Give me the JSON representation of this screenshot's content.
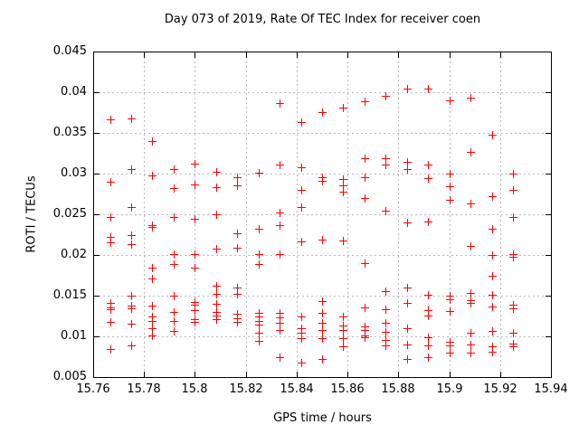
{
  "chart_data": {
    "type": "scatter",
    "title": "Day 073 of 2019, Rate Of TEC Index for receiver coen",
    "xlabel": "GPS time / hours",
    "ylabel": "ROTI / TECUs",
    "xlim": [
      15.76,
      15.94
    ],
    "ylim": [
      0.005,
      0.045
    ],
    "xticks": [
      15.76,
      15.78,
      15.8,
      15.82,
      15.84,
      15.86,
      15.88,
      15.9,
      15.92,
      15.94
    ],
    "xtick_labels": [
      "15.76",
      "15.78",
      "15.8",
      "15.82",
      "15.84",
      "15.86",
      "15.88",
      "15.9",
      "15.92",
      "15.94"
    ],
    "yticks": [
      0.005,
      0.01,
      0.015,
      0.02,
      0.025,
      0.03,
      0.035,
      0.04,
      0.045
    ],
    "ytick_labels": [
      "0.005",
      "0.01",
      "0.015",
      "0.02",
      "0.025",
      "0.03",
      "0.035",
      "0.04",
      "0.045"
    ],
    "grid": true,
    "legend": "none",
    "marker": "plus",
    "marker_color": "#ff0000",
    "grid_color": "#b9b9b9",
    "axis_color": "#000000",
    "background_color": "#ffffff",
    "points": [
      [
        15.7667,
        0.0367
      ],
      [
        15.7667,
        0.029
      ],
      [
        15.7667,
        0.0247
      ],
      [
        15.7667,
        0.0222
      ],
      [
        15.7667,
        0.0216
      ],
      [
        15.7667,
        0.0141
      ],
      [
        15.7667,
        0.0136
      ],
      [
        15.7667,
        0.0133
      ],
      [
        15.7667,
        0.0118
      ],
      [
        15.7667,
        0.0084
      ],
      [
        15.775,
        0.0368
      ],
      [
        15.775,
        0.0306
      ],
      [
        15.775,
        0.0259
      ],
      [
        15.775,
        0.0225
      ],
      [
        15.775,
        0.0213
      ],
      [
        15.775,
        0.015
      ],
      [
        15.775,
        0.0138
      ],
      [
        15.775,
        0.0134
      ],
      [
        15.775,
        0.0116
      ],
      [
        15.775,
        0.0089
      ],
      [
        15.7833,
        0.034
      ],
      [
        15.7833,
        0.0298
      ],
      [
        15.7833,
        0.0237
      ],
      [
        15.7833,
        0.0234
      ],
      [
        15.7833,
        0.0185
      ],
      [
        15.7833,
        0.0171
      ],
      [
        15.7833,
        0.0138
      ],
      [
        15.7833,
        0.0124
      ],
      [
        15.7833,
        0.0119
      ],
      [
        15.7833,
        0.011
      ],
      [
        15.7833,
        0.0101
      ],
      [
        15.7917,
        0.0306
      ],
      [
        15.7917,
        0.0282
      ],
      [
        15.7917,
        0.0247
      ],
      [
        15.7917,
        0.0201
      ],
      [
        15.7917,
        0.0189
      ],
      [
        15.7917,
        0.015
      ],
      [
        15.7917,
        0.013
      ],
      [
        15.7917,
        0.0119
      ],
      [
        15.7917,
        0.0107
      ],
      [
        15.8,
        0.0312
      ],
      [
        15.8,
        0.0287
      ],
      [
        15.8,
        0.0244
      ],
      [
        15.8,
        0.0201
      ],
      [
        15.8,
        0.0184
      ],
      [
        15.8,
        0.0142
      ],
      [
        15.8,
        0.0139
      ],
      [
        15.8,
        0.0132
      ],
      [
        15.8,
        0.0121
      ],
      [
        15.8,
        0.0118
      ],
      [
        15.8083,
        0.0302
      ],
      [
        15.8083,
        0.0283
      ],
      [
        15.8083,
        0.025
      ],
      [
        15.8083,
        0.0208
      ],
      [
        15.8083,
        0.0162
      ],
      [
        15.8083,
        0.0152
      ],
      [
        15.8083,
        0.014
      ],
      [
        15.8083,
        0.013
      ],
      [
        15.8083,
        0.0126
      ],
      [
        15.8083,
        0.0121
      ],
      [
        15.8167,
        0.0296
      ],
      [
        15.8167,
        0.0286
      ],
      [
        15.8167,
        0.0227
      ],
      [
        15.8167,
        0.0209
      ],
      [
        15.8167,
        0.016
      ],
      [
        15.8167,
        0.0152
      ],
      [
        15.8167,
        0.0128
      ],
      [
        15.8167,
        0.0122
      ],
      [
        15.8167,
        0.0118
      ],
      [
        15.825,
        0.0301
      ],
      [
        15.825,
        0.0232
      ],
      [
        15.825,
        0.0201
      ],
      [
        15.825,
        0.0189
      ],
      [
        15.825,
        0.0129
      ],
      [
        15.825,
        0.0124
      ],
      [
        15.825,
        0.0119
      ],
      [
        15.825,
        0.0114
      ],
      [
        15.825,
        0.0104
      ],
      [
        15.825,
        0.0095
      ],
      [
        15.8333,
        0.0387
      ],
      [
        15.8333,
        0.0311
      ],
      [
        15.8333,
        0.0252
      ],
      [
        15.8333,
        0.0237
      ],
      [
        15.8333,
        0.0201
      ],
      [
        15.8333,
        0.0129
      ],
      [
        15.8333,
        0.0123
      ],
      [
        15.8333,
        0.0117
      ],
      [
        15.8333,
        0.0108
      ],
      [
        15.8333,
        0.0075
      ],
      [
        15.8417,
        0.0363
      ],
      [
        15.8417,
        0.0308
      ],
      [
        15.8417,
        0.028
      ],
      [
        15.8417,
        0.0259
      ],
      [
        15.8417,
        0.0217
      ],
      [
        15.8417,
        0.0125
      ],
      [
        15.8417,
        0.011
      ],
      [
        15.8417,
        0.0104
      ],
      [
        15.8417,
        0.0098
      ],
      [
        15.8417,
        0.0068
      ],
      [
        15.85,
        0.0376
      ],
      [
        15.85,
        0.0296
      ],
      [
        15.85,
        0.0291
      ],
      [
        15.85,
        0.0219
      ],
      [
        15.85,
        0.0143
      ],
      [
        15.85,
        0.0129
      ],
      [
        15.85,
        0.0117
      ],
      [
        15.85,
        0.0108
      ],
      [
        15.85,
        0.0098
      ],
      [
        15.85,
        0.0072
      ],
      [
        15.8583,
        0.0381
      ],
      [
        15.8583,
        0.0293
      ],
      [
        15.8583,
        0.0286
      ],
      [
        15.8583,
        0.0278
      ],
      [
        15.8583,
        0.0218
      ],
      [
        15.8583,
        0.0125
      ],
      [
        15.8583,
        0.0113
      ],
      [
        15.8583,
        0.0108
      ],
      [
        15.8583,
        0.0098
      ],
      [
        15.8583,
        0.0088
      ],
      [
        15.8667,
        0.0389
      ],
      [
        15.8667,
        0.0319
      ],
      [
        15.8667,
        0.0296
      ],
      [
        15.8667,
        0.027
      ],
      [
        15.8667,
        0.019
      ],
      [
        15.8667,
        0.0136
      ],
      [
        15.8667,
        0.0112
      ],
      [
        15.8667,
        0.0108
      ],
      [
        15.8667,
        0.0101
      ],
      [
        15.8667,
        0.0099
      ],
      [
        15.875,
        0.0395
      ],
      [
        15.875,
        0.0319
      ],
      [
        15.875,
        0.0311
      ],
      [
        15.875,
        0.0255
      ],
      [
        15.875,
        0.0156
      ],
      [
        15.875,
        0.0133
      ],
      [
        15.875,
        0.0117
      ],
      [
        15.875,
        0.0106
      ],
      [
        15.875,
        0.0096
      ],
      [
        15.875,
        0.0089
      ],
      [
        15.8833,
        0.0404
      ],
      [
        15.8833,
        0.0315
      ],
      [
        15.8833,
        0.0306
      ],
      [
        15.8833,
        0.024
      ],
      [
        15.8833,
        0.016
      ],
      [
        15.8833,
        0.0141
      ],
      [
        15.8833,
        0.011
      ],
      [
        15.8833,
        0.009
      ],
      [
        15.8833,
        0.0072
      ],
      [
        15.8917,
        0.0404
      ],
      [
        15.8917,
        0.0311
      ],
      [
        15.8917,
        0.0294
      ],
      [
        15.8917,
        0.0241
      ],
      [
        15.8917,
        0.0151
      ],
      [
        15.8917,
        0.0132
      ],
      [
        15.8917,
        0.0126
      ],
      [
        15.8917,
        0.0099
      ],
      [
        15.8917,
        0.0089
      ],
      [
        15.8917,
        0.0075
      ],
      [
        15.9,
        0.039
      ],
      [
        15.9,
        0.03
      ],
      [
        15.9,
        0.0284
      ],
      [
        15.9,
        0.0268
      ],
      [
        15.9,
        0.015
      ],
      [
        15.9,
        0.0146
      ],
      [
        15.9,
        0.0131
      ],
      [
        15.9,
        0.0093
      ],
      [
        15.9,
        0.0089
      ],
      [
        15.9,
        0.008
      ],
      [
        15.9083,
        0.0393
      ],
      [
        15.9083,
        0.0327
      ],
      [
        15.9083,
        0.0263
      ],
      [
        15.9083,
        0.0211
      ],
      [
        15.9083,
        0.0153
      ],
      [
        15.9083,
        0.0145
      ],
      [
        15.9083,
        0.0141
      ],
      [
        15.9083,
        0.0104
      ],
      [
        15.9083,
        0.009
      ],
      [
        15.9083,
        0.008
      ],
      [
        15.9167,
        0.0348
      ],
      [
        15.9167,
        0.0272
      ],
      [
        15.9167,
        0.0232
      ],
      [
        15.9167,
        0.02
      ],
      [
        15.9167,
        0.0174
      ],
      [
        15.9167,
        0.0151
      ],
      [
        15.9167,
        0.0137
      ],
      [
        15.9167,
        0.0107
      ],
      [
        15.9167,
        0.0088
      ],
      [
        15.9167,
        0.0081
      ],
      [
        15.925,
        0.03
      ],
      [
        15.925,
        0.028
      ],
      [
        15.925,
        0.0247
      ],
      [
        15.925,
        0.0201
      ],
      [
        15.925,
        0.0198
      ],
      [
        15.925,
        0.0139
      ],
      [
        15.925,
        0.0134
      ],
      [
        15.925,
        0.0104
      ],
      [
        15.925,
        0.0091
      ],
      [
        15.925,
        0.0088
      ]
    ]
  }
}
